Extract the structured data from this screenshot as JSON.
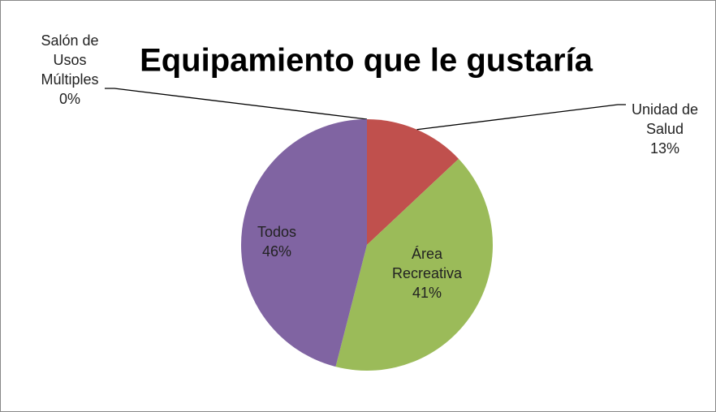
{
  "chart_data": {
    "type": "pie",
    "title": "Equipamiento que le gustaría",
    "categories": [
      "Salón de Usos Múltiples",
      "Unidad de Salud",
      "Área Recreativa",
      "Todos"
    ],
    "values": [
      0,
      13,
      41,
      46
    ],
    "value_labels": [
      "0%",
      "13%",
      "41%",
      "46%"
    ],
    "colors": [
      "#4f81bd",
      "#c0504d",
      "#9bbb59",
      "#8064a2"
    ]
  }
}
